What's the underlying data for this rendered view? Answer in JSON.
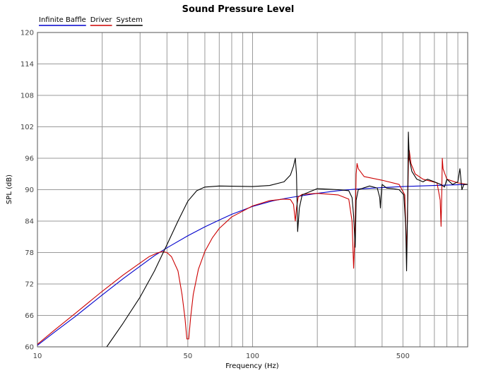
{
  "chart_data": {
    "type": "line",
    "title": "Sound Pressure Level",
    "xlabel": "Frequency (Hz)",
    "ylabel": "SPL (dB)",
    "xscale": "log",
    "xlim": [
      10,
      1000
    ],
    "ylim": [
      60,
      120
    ],
    "x_tick_labels": [
      {
        "value": 10,
        "label": "10"
      },
      {
        "value": 50,
        "label": "50"
      },
      {
        "value": 100,
        "label": "100"
      },
      {
        "value": 500,
        "label": "500"
      }
    ],
    "y_ticks": [
      60,
      66,
      72,
      78,
      84,
      90,
      96,
      102,
      108,
      114,
      120
    ],
    "grid": true,
    "legend": "top-left",
    "series": [
      {
        "name": "Infinite Baffle",
        "color": "#0000cc",
        "points": [
          [
            10,
            60.3
          ],
          [
            12,
            62.8
          ],
          [
            15,
            65.8
          ],
          [
            20,
            69.9
          ],
          [
            25,
            73.0
          ],
          [
            30,
            75.4
          ],
          [
            35,
            77.4
          ],
          [
            40,
            78.9
          ],
          [
            50,
            81.2
          ],
          [
            60,
            82.9
          ],
          [
            70,
            84.2
          ],
          [
            80,
            85.3
          ],
          [
            100,
            86.8
          ],
          [
            125,
            87.9
          ],
          [
            150,
            88.5
          ],
          [
            200,
            89.3
          ],
          [
            250,
            89.8
          ],
          [
            300,
            90.1
          ],
          [
            400,
            90.4
          ],
          [
            500,
            90.6
          ],
          [
            700,
            90.8
          ],
          [
            1000,
            91.0
          ]
        ]
      },
      {
        "name": "Driver",
        "color": "#cc0000",
        "points": [
          [
            10,
            60.5
          ],
          [
            12,
            63.2
          ],
          [
            15,
            66.4
          ],
          [
            20,
            70.6
          ],
          [
            25,
            73.7
          ],
          [
            30,
            76.0
          ],
          [
            33,
            77.2
          ],
          [
            36,
            77.9
          ],
          [
            38,
            78.2
          ],
          [
            40,
            78.0
          ],
          [
            42,
            77.2
          ],
          [
            45,
            74.5
          ],
          [
            47,
            70.0
          ],
          [
            48.5,
            65.5
          ],
          [
            49.5,
            61.5
          ],
          [
            50.5,
            61.5
          ],
          [
            51.5,
            65.5
          ],
          [
            53,
            70.0
          ],
          [
            56,
            74.8
          ],
          [
            60,
            78.2
          ],
          [
            65,
            80.8
          ],
          [
            70,
            82.6
          ],
          [
            80,
            84.8
          ],
          [
            100,
            86.9
          ],
          [
            120,
            87.9
          ],
          [
            140,
            88.2
          ],
          [
            150,
            88.1
          ],
          [
            155,
            87.2
          ],
          [
            158,
            84.0
          ],
          [
            160,
            86.5
          ],
          [
            163,
            88.6
          ],
          [
            170,
            89.1
          ],
          [
            200,
            89.3
          ],
          [
            250,
            89.0
          ],
          [
            280,
            88.2
          ],
          [
            290,
            84.0
          ],
          [
            295,
            75.0
          ],
          [
            300,
            83.0
          ],
          [
            303,
            93.0
          ],
          [
            306,
            95.0
          ],
          [
            310,
            94.0
          ],
          [
            330,
            92.5
          ],
          [
            400,
            91.8
          ],
          [
            480,
            91.0
          ],
          [
            510,
            89.0
          ],
          [
            520,
            78.0
          ],
          [
            525,
            85.0
          ],
          [
            530,
            95.0
          ],
          [
            535,
            97.5
          ],
          [
            545,
            95.0
          ],
          [
            570,
            93.0
          ],
          [
            620,
            92.0
          ],
          [
            720,
            91.3
          ],
          [
            745,
            88.0
          ],
          [
            752,
            83.0
          ],
          [
            758,
            90.0
          ],
          [
            762,
            96.0
          ],
          [
            768,
            94.0
          ],
          [
            800,
            92.0
          ],
          [
            900,
            91.3
          ],
          [
            1000,
            91.0
          ]
        ]
      },
      {
        "name": "System",
        "color": "#000000",
        "points": [
          [
            21,
            60.0
          ],
          [
            25,
            64.5
          ],
          [
            30,
            69.5
          ],
          [
            35,
            74.5
          ],
          [
            40,
            79.5
          ],
          [
            45,
            84.0
          ],
          [
            50,
            87.8
          ],
          [
            55,
            89.8
          ],
          [
            60,
            90.5
          ],
          [
            70,
            90.7
          ],
          [
            100,
            90.6
          ],
          [
            120,
            90.8
          ],
          [
            140,
            91.5
          ],
          [
            150,
            92.8
          ],
          [
            155,
            94.5
          ],
          [
            158,
            96.0
          ],
          [
            160,
            93.0
          ],
          [
            162,
            82.0
          ],
          [
            165,
            86.5
          ],
          [
            170,
            89.0
          ],
          [
            200,
            90.2
          ],
          [
            250,
            90.0
          ],
          [
            280,
            89.8
          ],
          [
            290,
            88.5
          ],
          [
            295,
            85.0
          ],
          [
            300,
            79.0
          ],
          [
            303,
            88.0
          ],
          [
            310,
            90.0
          ],
          [
            350,
            90.7
          ],
          [
            380,
            90.3
          ],
          [
            390,
            88.5
          ],
          [
            393,
            86.5
          ],
          [
            396,
            89.0
          ],
          [
            400,
            91.0
          ],
          [
            420,
            90.3
          ],
          [
            450,
            90.2
          ],
          [
            480,
            90.0
          ],
          [
            505,
            89.0
          ],
          [
            515,
            83.0
          ],
          [
            520,
            74.5
          ],
          [
            525,
            85.0
          ],
          [
            530,
            101.0
          ],
          [
            535,
            96.0
          ],
          [
            550,
            93.5
          ],
          [
            580,
            92.0
          ],
          [
            620,
            91.5
          ],
          [
            650,
            92.0
          ],
          [
            700,
            91.5
          ],
          [
            750,
            91.0
          ],
          [
            780,
            90.5
          ],
          [
            800,
            92.0
          ],
          [
            850,
            91.0
          ],
          [
            900,
            91.5
          ],
          [
            920,
            94.0
          ],
          [
            940,
            90.0
          ],
          [
            960,
            91.0
          ],
          [
            1000,
            91.0
          ]
        ]
      }
    ]
  }
}
